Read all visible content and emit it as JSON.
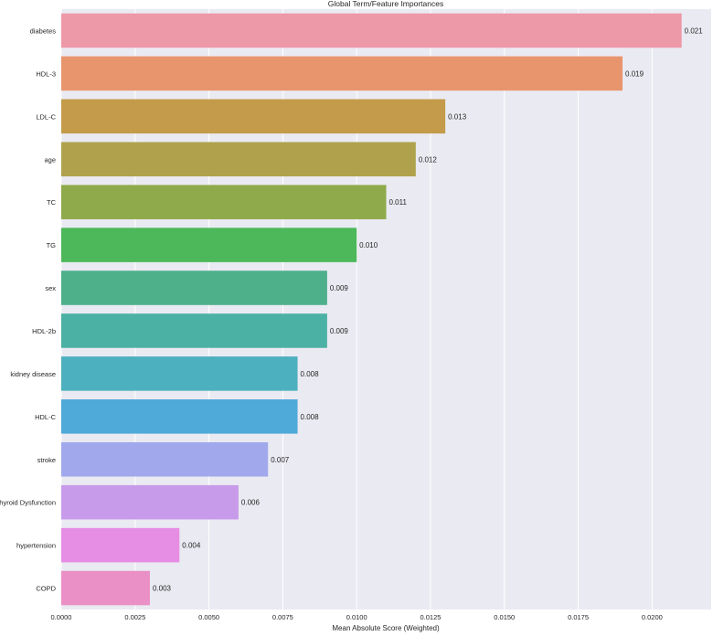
{
  "chart_data": {
    "type": "bar",
    "orientation": "horizontal",
    "title": "Global Term/Feature Importances",
    "xlabel": "Mean Absolute Score (Weighted)",
    "ylabel": "",
    "xlim": [
      0,
      0.022
    ],
    "xticks": [
      0.0,
      0.0025,
      0.005,
      0.0075,
      0.01,
      0.0125,
      0.015,
      0.0175,
      0.02
    ],
    "xtick_labels": [
      "0.0000",
      "0.0025",
      "0.0050",
      "0.0075",
      "0.0100",
      "0.0125",
      "0.0150",
      "0.0175",
      "0.0200"
    ],
    "grid": true,
    "categories": [
      "diabetes",
      "HDL-3",
      "LDL-C",
      "age",
      "TC",
      "TG",
      "sex",
      "HDL-2b",
      "kidney disease",
      "HDL-C",
      "stroke",
      "Thyroid Dysfunction",
      "hypertension",
      "COPD"
    ],
    "values": [
      0.021,
      0.019,
      0.013,
      0.012,
      0.011,
      0.01,
      0.009,
      0.009,
      0.008,
      0.008,
      0.007,
      0.006,
      0.004,
      0.003
    ],
    "value_labels": [
      "0.021",
      "0.019",
      "0.013",
      "0.012",
      "0.011",
      "0.010",
      "0.009",
      "0.009",
      "0.008",
      "0.008",
      "0.007",
      "0.006",
      "0.004",
      "0.003"
    ],
    "colors": [
      "#ee99a8",
      "#e8956d",
      "#c49b4a",
      "#b0a24c",
      "#8eaa4a",
      "#4cb85a",
      "#4db08b",
      "#4bb1a4",
      "#4db0be",
      "#4fa9d9",
      "#a1a9ec",
      "#c89bea",
      "#e68de4",
      "#ea90c6"
    ],
    "background": "#eaeaf2"
  }
}
